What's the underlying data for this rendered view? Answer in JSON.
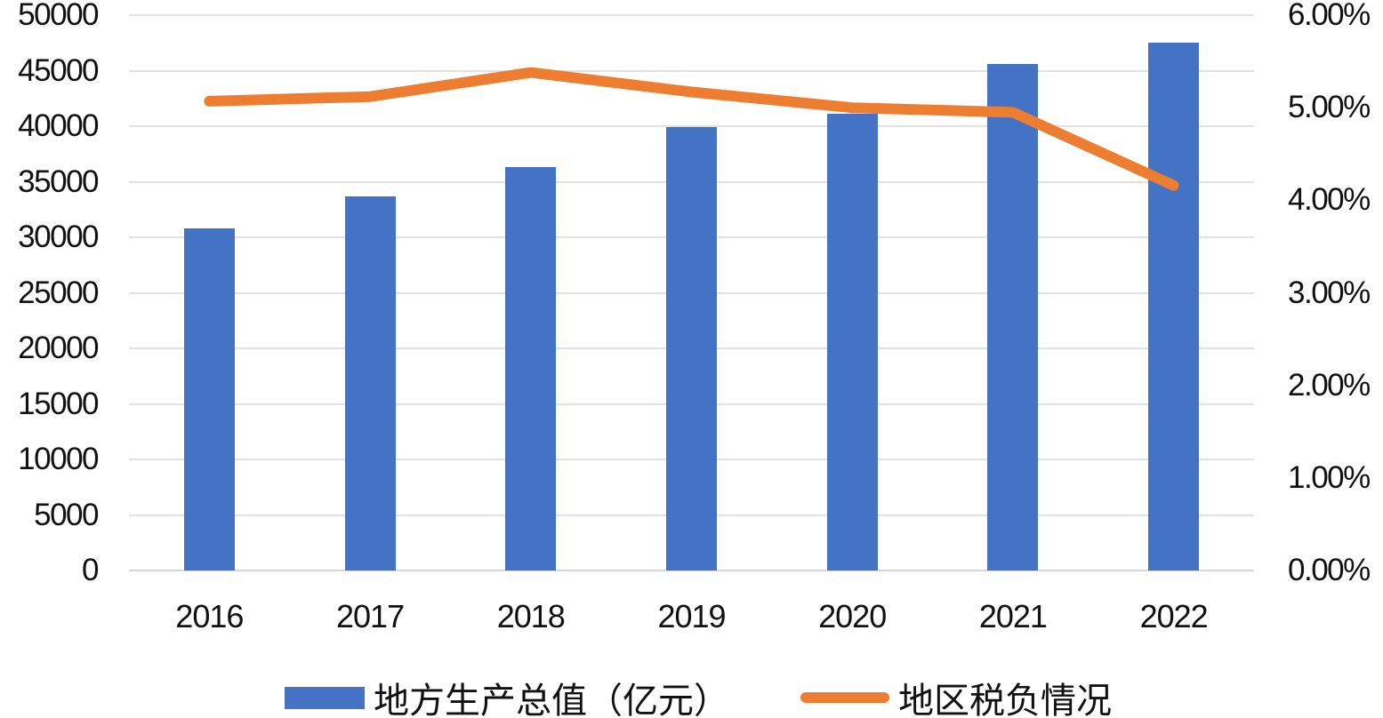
{
  "chart_data": {
    "type": "bar",
    "combo": "bar+line dual axis",
    "title": "",
    "categories": [
      "2016",
      "2017",
      "2018",
      "2019",
      "2020",
      "2021",
      "2022"
    ],
    "series": [
      {
        "name": "地方生产总值（亿元）",
        "type": "bar",
        "axis": "left",
        "color": "#4472C4",
        "values": [
          30800,
          33700,
          36300,
          39900,
          41100,
          45600,
          47500
        ]
      },
      {
        "name": "地区税负情况",
        "type": "line",
        "axis": "right",
        "color": "#ED7D31",
        "values": [
          5.07,
          5.12,
          5.38,
          5.17,
          5.0,
          4.95,
          4.16
        ]
      }
    ],
    "left_axis": {
      "min": 0,
      "max": 50000,
      "step": 5000,
      "ticks": [
        "0",
        "5000",
        "10000",
        "15000",
        "20000",
        "25000",
        "30000",
        "35000",
        "40000",
        "45000",
        "50000"
      ]
    },
    "right_axis": {
      "min": 0,
      "max": 6,
      "step": 1,
      "ticks": [
        "0.00%",
        "1.00%",
        "2.00%",
        "3.00%",
        "4.00%",
        "5.00%",
        "6.00%"
      ]
    },
    "grid": true,
    "legend_position": "bottom"
  }
}
